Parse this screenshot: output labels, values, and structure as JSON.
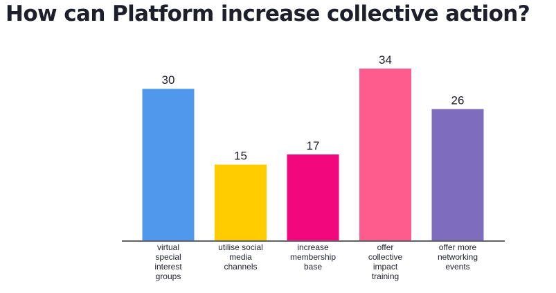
{
  "title": "How can Platform increase collective action?",
  "chart_data": {
    "type": "bar",
    "title": "How can Platform increase collective action?",
    "xlabel": "",
    "ylabel": "",
    "categories": [
      "virtual special interest groups",
      "utilise social media channels",
      "increase membership base",
      "offer collective impact training",
      "offer more networking events"
    ],
    "category_lines": [
      [
        "virtual",
        "special",
        "interest",
        "groups"
      ],
      [
        "utilise social",
        "media",
        "channels"
      ],
      [
        "increase",
        "membership",
        "base"
      ],
      [
        "offer",
        "collective",
        "impact",
        "training"
      ],
      [
        "offer more",
        "networking",
        "events"
      ]
    ],
    "values": [
      30,
      15,
      17,
      34,
      26
    ],
    "colors": [
      "#5098ec",
      "#ffcc00",
      "#f3077c",
      "#ff5c8e",
      "#7e6cbf"
    ],
    "ylim": [
      0,
      34
    ],
    "grid": false,
    "legend": "none",
    "data_labels": true
  }
}
